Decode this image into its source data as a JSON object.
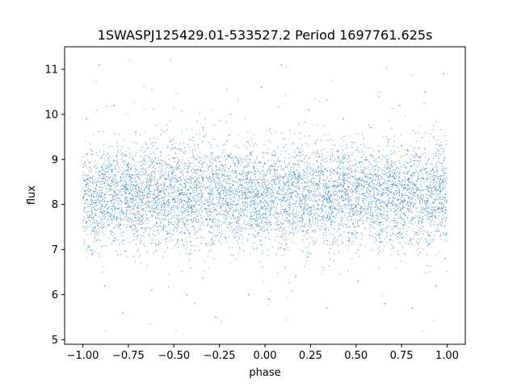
{
  "chart_data": {
    "type": "scatter",
    "title": "1SWASPJ125429.01-533527.2 Period 1697761.625s",
    "xlabel": "phase",
    "ylabel": "flux",
    "xlim": [
      -1.1,
      1.1
    ],
    "ylim": [
      4.9,
      11.5
    ],
    "x_ticks": [
      -1.0,
      -0.75,
      -0.5,
      -0.25,
      0.0,
      0.25,
      0.5,
      0.75,
      1.0
    ],
    "x_tick_labels": [
      "−1.00",
      "−0.75",
      "−0.50",
      "−0.25",
      "0.00",
      "0.25",
      "0.50",
      "0.75",
      "1.00"
    ],
    "y_ticks": [
      5,
      6,
      7,
      8,
      9,
      10,
      11
    ],
    "y_tick_labels": [
      "5",
      "6",
      "7",
      "8",
      "9",
      "10",
      "11"
    ],
    "grid": false,
    "marker_color": "#1f77b4",
    "series": [
      {
        "phase_range": [
          -1.0,
          1.0
        ],
        "flux_center": 8.2,
        "flux_typical_range": [
          7.0,
          9.5
        ],
        "flux_full_range": [
          5.2,
          11.2
        ],
        "points": [
          [
            -0.98,
            9.9
          ],
          [
            -0.95,
            6.9
          ],
          [
            -0.91,
            11.1
          ],
          [
            -0.88,
            6.2
          ],
          [
            -0.83,
            10.2
          ],
          [
            -0.78,
            5.6
          ],
          [
            -0.71,
            9.6
          ],
          [
            -0.62,
            6.1
          ],
          [
            -0.52,
            9.4
          ],
          [
            -0.43,
            6.0
          ],
          [
            -0.34,
            9.7
          ],
          [
            -0.27,
            5.5
          ],
          [
            -0.19,
            10.0
          ],
          [
            -0.09,
            6.0
          ],
          [
            -0.02,
            10.6
          ],
          [
            0.02,
            5.9
          ],
          [
            0.09,
            11.1
          ],
          [
            0.17,
            6.4
          ],
          [
            0.24,
            10.1
          ],
          [
            0.34,
            5.7
          ],
          [
            0.43,
            9.9
          ],
          [
            0.51,
            6.3
          ],
          [
            0.58,
            9.7
          ],
          [
            0.66,
            5.8
          ],
          [
            0.74,
            10.2
          ],
          [
            0.81,
            5.7
          ],
          [
            0.88,
            10.5
          ],
          [
            0.94,
            6.2
          ],
          [
            0.98,
            10.9
          ],
          [
            0.99,
            6.8
          ]
        ]
      }
    ]
  }
}
